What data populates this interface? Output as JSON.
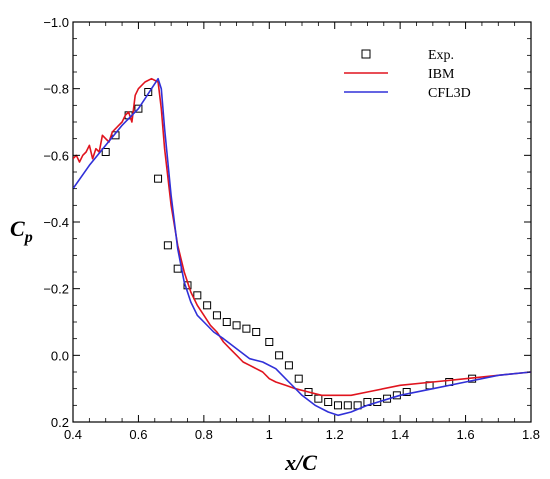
{
  "chart_data": {
    "type": "line",
    "title": "",
    "xlabel": "x/C",
    "ylabel_main": "C",
    "ylabel_sub": "p",
    "xlim": [
      0.4,
      1.8
    ],
    "ylim": [
      0.2,
      -1.0
    ],
    "y_inverted": true,
    "x_ticks": [
      0.4,
      0.6,
      0.8,
      1.0,
      1.2,
      1.4,
      1.6,
      1.8
    ],
    "x_tick_labels": [
      "0.4",
      "0.6",
      "0.8",
      "1",
      "1.2",
      "1.4",
      "1.6",
      "1.8"
    ],
    "y_ticks": [
      -1.0,
      -0.8,
      -0.6,
      -0.4,
      -0.2,
      0.0,
      0.2
    ],
    "y_tick_labels": [
      "−1.0",
      "−0.8",
      "−0.6",
      "−0.4",
      "−0.2",
      "0.0",
      "0.2"
    ],
    "grid": false,
    "legend_position": "top-right",
    "series": [
      {
        "name": "Exp.",
        "kind": "scatter",
        "marker": "square",
        "color": "#000000",
        "points": [
          [
            0.5,
            -0.61
          ],
          [
            0.53,
            -0.66
          ],
          [
            0.57,
            -0.72
          ],
          [
            0.6,
            -0.74
          ],
          [
            0.63,
            -0.79
          ],
          [
            0.66,
            -0.53
          ],
          [
            0.69,
            -0.33
          ],
          [
            0.72,
            -0.26
          ],
          [
            0.75,
            -0.21
          ],
          [
            0.78,
            -0.18
          ],
          [
            0.81,
            -0.15
          ],
          [
            0.84,
            -0.12
          ],
          [
            0.87,
            -0.1
          ],
          [
            0.9,
            -0.09
          ],
          [
            0.93,
            -0.08
          ],
          [
            0.96,
            -0.07
          ],
          [
            1.0,
            -0.04
          ],
          [
            1.03,
            0.0
          ],
          [
            1.06,
            0.03
          ],
          [
            1.09,
            0.07
          ],
          [
            1.12,
            0.11
          ],
          [
            1.15,
            0.13
          ],
          [
            1.18,
            0.14
          ],
          [
            1.21,
            0.15
          ],
          [
            1.24,
            0.15
          ],
          [
            1.27,
            0.15
          ],
          [
            1.3,
            0.14
          ],
          [
            1.33,
            0.14
          ],
          [
            1.36,
            0.13
          ],
          [
            1.39,
            0.12
          ],
          [
            1.42,
            0.11
          ],
          [
            1.49,
            0.09
          ],
          [
            1.55,
            0.08
          ],
          [
            1.62,
            0.07
          ]
        ]
      },
      {
        "name": "IBM",
        "kind": "line",
        "color": "#e0141e",
        "points": [
          [
            0.4,
            -0.59
          ],
          [
            0.41,
            -0.6
          ],
          [
            0.42,
            -0.58
          ],
          [
            0.43,
            -0.6
          ],
          [
            0.44,
            -0.61
          ],
          [
            0.45,
            -0.63
          ],
          [
            0.46,
            -0.59
          ],
          [
            0.47,
            -0.62
          ],
          [
            0.48,
            -0.61
          ],
          [
            0.49,
            -0.66
          ],
          [
            0.5,
            -0.65
          ],
          [
            0.51,
            -0.64
          ],
          [
            0.52,
            -0.67
          ],
          [
            0.53,
            -0.68
          ],
          [
            0.54,
            -0.69
          ],
          [
            0.55,
            -0.7
          ],
          [
            0.56,
            -0.72
          ],
          [
            0.57,
            -0.73
          ],
          [
            0.58,
            -0.7
          ],
          [
            0.59,
            -0.78
          ],
          [
            0.6,
            -0.8
          ],
          [
            0.62,
            -0.82
          ],
          [
            0.64,
            -0.83
          ],
          [
            0.66,
            -0.82
          ],
          [
            0.67,
            -0.74
          ],
          [
            0.68,
            -0.62
          ],
          [
            0.7,
            -0.45
          ],
          [
            0.72,
            -0.33
          ],
          [
            0.74,
            -0.25
          ],
          [
            0.76,
            -0.19
          ],
          [
            0.78,
            -0.15
          ],
          [
            0.8,
            -0.12
          ],
          [
            0.82,
            -0.09
          ],
          [
            0.84,
            -0.07
          ],
          [
            0.86,
            -0.04
          ],
          [
            0.88,
            -0.02
          ],
          [
            0.9,
            0.0
          ],
          [
            0.92,
            0.02
          ],
          [
            0.94,
            0.03
          ],
          [
            0.96,
            0.04
          ],
          [
            0.98,
            0.05
          ],
          [
            1.0,
            0.07
          ],
          [
            1.02,
            0.08
          ],
          [
            1.05,
            0.09
          ],
          [
            1.08,
            0.1
          ],
          [
            1.12,
            0.11
          ],
          [
            1.16,
            0.12
          ],
          [
            1.2,
            0.12
          ],
          [
            1.25,
            0.12
          ],
          [
            1.3,
            0.11
          ],
          [
            1.4,
            0.09
          ],
          [
            1.5,
            0.08
          ],
          [
            1.6,
            0.07
          ],
          [
            1.7,
            0.06
          ],
          [
            1.8,
            0.05
          ]
        ]
      },
      {
        "name": "CFL3D",
        "kind": "line",
        "color": "#3030d8",
        "points": [
          [
            0.4,
            -0.5
          ],
          [
            0.45,
            -0.57
          ],
          [
            0.5,
            -0.63
          ],
          [
            0.55,
            -0.69
          ],
          [
            0.58,
            -0.72
          ],
          [
            0.6,
            -0.74
          ],
          [
            0.62,
            -0.77
          ],
          [
            0.64,
            -0.8
          ],
          [
            0.66,
            -0.83
          ],
          [
            0.67,
            -0.8
          ],
          [
            0.68,
            -0.68
          ],
          [
            0.7,
            -0.48
          ],
          [
            0.72,
            -0.32
          ],
          [
            0.74,
            -0.22
          ],
          [
            0.76,
            -0.16
          ],
          [
            0.78,
            -0.12
          ],
          [
            0.8,
            -0.1
          ],
          [
            0.83,
            -0.07
          ],
          [
            0.86,
            -0.05
          ],
          [
            0.9,
            -0.02
          ],
          [
            0.94,
            0.01
          ],
          [
            0.98,
            0.02
          ],
          [
            1.02,
            0.04
          ],
          [
            1.06,
            0.08
          ],
          [
            1.1,
            0.12
          ],
          [
            1.14,
            0.15
          ],
          [
            1.18,
            0.17
          ],
          [
            1.21,
            0.18
          ],
          [
            1.25,
            0.17
          ],
          [
            1.3,
            0.15
          ],
          [
            1.4,
            0.12
          ],
          [
            1.5,
            0.1
          ],
          [
            1.6,
            0.08
          ],
          [
            1.7,
            0.06
          ],
          [
            1.8,
            0.05
          ]
        ]
      }
    ]
  }
}
